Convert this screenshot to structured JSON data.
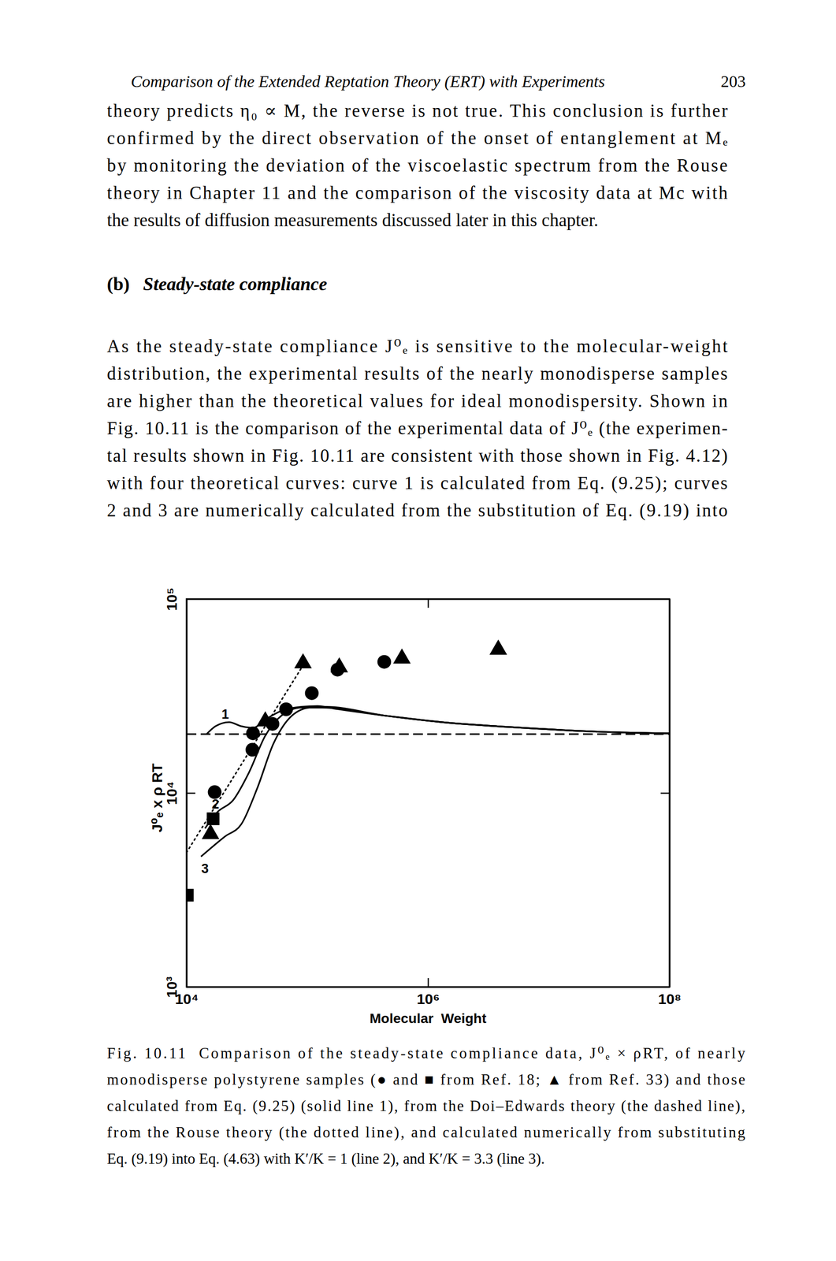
{
  "header": {
    "title": "Comparison of the Extended Reptation Theory (ERT) with Experiments",
    "page": "203"
  },
  "body": {
    "paragraph_1": [
      "theory predicts η₀ ∝ M, the reverse is not true. This conclusion is further",
      "confirmed by the direct observation of the onset of entanglement at Mₑ",
      "by monitoring the deviation of the viscoelastic spectrum from the Rouse",
      "theory in Chapter 11 and the comparison of the viscosity data at Mc with",
      "the results of diffusion measurements discussed later in this chapter."
    ],
    "heading": {
      "label": "(b)",
      "title": "Steady-state compliance"
    },
    "paragraph_2": [
      "As the steady-state compliance J⁰ₑ is sensitive to the molecular-weight",
      "distribution, the experimental results of the nearly monodisperse samples",
      "are higher than the theoretical values for ideal monodispersity. Shown in",
      "Fig. 10.11 is the comparison of the experimental data of J⁰ₑ (the experimen-",
      "tal results shown in Fig. 10.11 are consistent with those shown in Fig. 4.12)",
      "with four theoretical curves: curve 1 is calculated from Eq. (9.25); curves",
      "2 and 3 are numerically calculated from the substitution of Eq. (9.19) into"
    ]
  },
  "chart_data": {
    "type": "scatter",
    "xlabel": "Molecular  Weight",
    "ylabel": "J⁰ₑ x ρ RT",
    "log": true,
    "xlim": [
      10000,
      100000000
    ],
    "ylim": [
      1000,
      100000
    ],
    "xticks": [
      {
        "value": 10000,
        "label": "10⁴"
      },
      {
        "value": 1000000,
        "label": "10⁶"
      },
      {
        "value": 100000000,
        "label": "10⁸"
      }
    ],
    "yticks": [
      {
        "value": 1000,
        "label": "10³"
      },
      {
        "value": 10000,
        "label": "10⁴"
      },
      {
        "value": 100000,
        "label": "10⁵"
      }
    ],
    "series": [
      {
        "type": "scatter",
        "marker": "circle",
        "color": "#000000",
        "x": [
          17100,
          35100,
          35500,
          51500,
          66800,
          109000,
          178000,
          434000
        ],
        "values": [
          10100,
          16700,
          20300,
          22700,
          27000,
          32700,
          43200,
          47400
        ]
      },
      {
        "type": "scatter",
        "marker": "square",
        "color": "#000000",
        "x": [
          10150,
          16600
        ],
        "values": [
          2970,
          7360
        ]
      },
      {
        "type": "scatter",
        "marker": "triangle",
        "color": "#000000",
        "x": [
          15800,
          44900,
          92200,
          184000,
          608000,
          3820000
        ],
        "values": [
          6140,
          23400,
          46600,
          44400,
          49300,
          54800
        ]
      },
      {
        "type": "line",
        "line_style": "solid",
        "color": "#000000",
        "x": [
          14660,
          17380,
          22540,
          28380,
          35730,
          44870,
          60950,
          89540,
          121600,
          178200,
          447700,
          1306000,
          6053000,
          28050000,
          100000000
        ],
        "values": [
          20090,
          22080,
          23170,
          22080,
          21680,
          23880,
          26490,
          27800,
          28050,
          27040,
          25000,
          23170,
          21680,
          20650,
          20280
        ]
      },
      {
        "type": "line",
        "line_style": "solid",
        "color": "#000000",
        "x": [
          14220,
          17900,
          24320,
          33040,
          44870,
          60950,
          89540,
          131200,
          447700,
          1306000,
          6053000,
          28050000,
          100000000
        ],
        "values": [
          6560,
          7940,
          9180,
          12820,
          19720,
          25000,
          27540,
          27540,
          25000,
          23170,
          21680,
          20650,
          20280
        ]
      },
      {
        "type": "line",
        "line_style": "solid",
        "color": "#000000",
        "x": [
          13180,
          20840,
          28380,
          38550,
          52360,
          71120,
          104200,
          141600,
          447700,
          1306000,
          6053000,
          28050000,
          100000000
        ],
        "values": [
          4700,
          5970,
          6890,
          10590,
          17910,
          24320,
          27540,
          27800,
          25000,
          23170,
          21680,
          20650,
          20280
        ]
      },
      {
        "type": "line",
        "line_style": "dashed",
        "color": "#000000",
        "x": [
          10000,
          100000000
        ],
        "values": [
          20100,
          20100
        ]
      },
      {
        "type": "line",
        "line_style": "dotted",
        "color": "#000000",
        "x": [
          10000,
          100000
        ],
        "values": [
          4930,
          49300
        ]
      }
    ],
    "annotations": [
      {
        "text": "1",
        "x": 20900,
        "y": 25530
      },
      {
        "text": "2",
        "x": 17380,
        "y": 8750
      },
      {
        "text": "3",
        "x": 14220,
        "y": 4070
      }
    ]
  },
  "caption": [
    "Fig. 10.11  Comparison of the steady-state compliance data, J⁰ₑ × ρRT, of nearly",
    "monodisperse polystyrene samples (● and ■ from Ref. 18; ▲ from Ref. 33) and those",
    "calculated from Eq. (9.25) (solid line 1), from the Doi–Edwards theory (the dashed line),",
    "from the Rouse theory (the dotted line), and calculated numerically from substituting",
    "Eq. (9.19) into Eq. (4.63) with K′/K = 1 (line 2), and K′/K = 3.3 (line 3)."
  ]
}
